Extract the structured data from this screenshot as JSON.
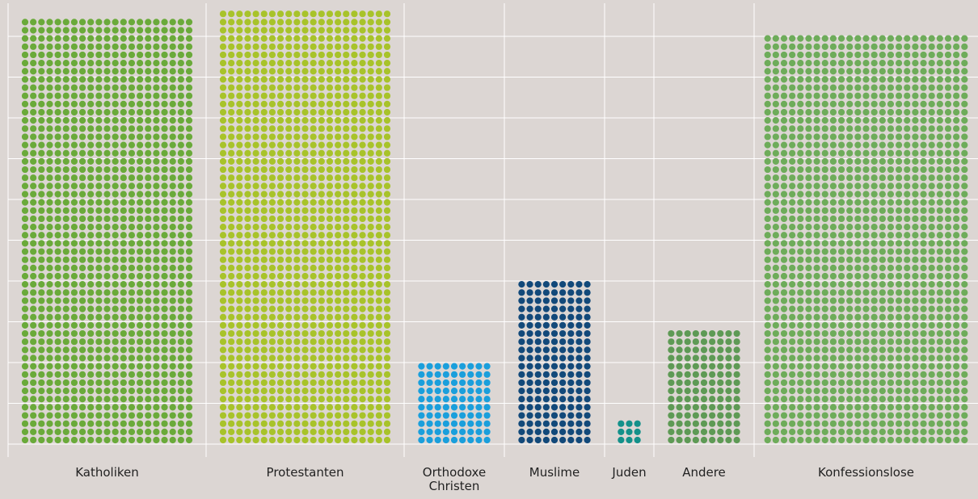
{
  "chart_data": {
    "type": "dot-matrix",
    "categories": [
      "Katholiken",
      "Protestanten",
      "Orthodoxe Christen",
      "Muslime",
      "Juden",
      "Andere",
      "Konfessionslose"
    ],
    "values": [
      1092,
      1113,
      90,
      180,
      9,
      126,
      1250
    ],
    "colors": [
      "#6aaa3a",
      "#a8c32a",
      "#1a9fdc",
      "#12497a",
      "#13918a",
      "#5e9a55",
      "#6eac5a"
    ],
    "grid": true
  }
}
